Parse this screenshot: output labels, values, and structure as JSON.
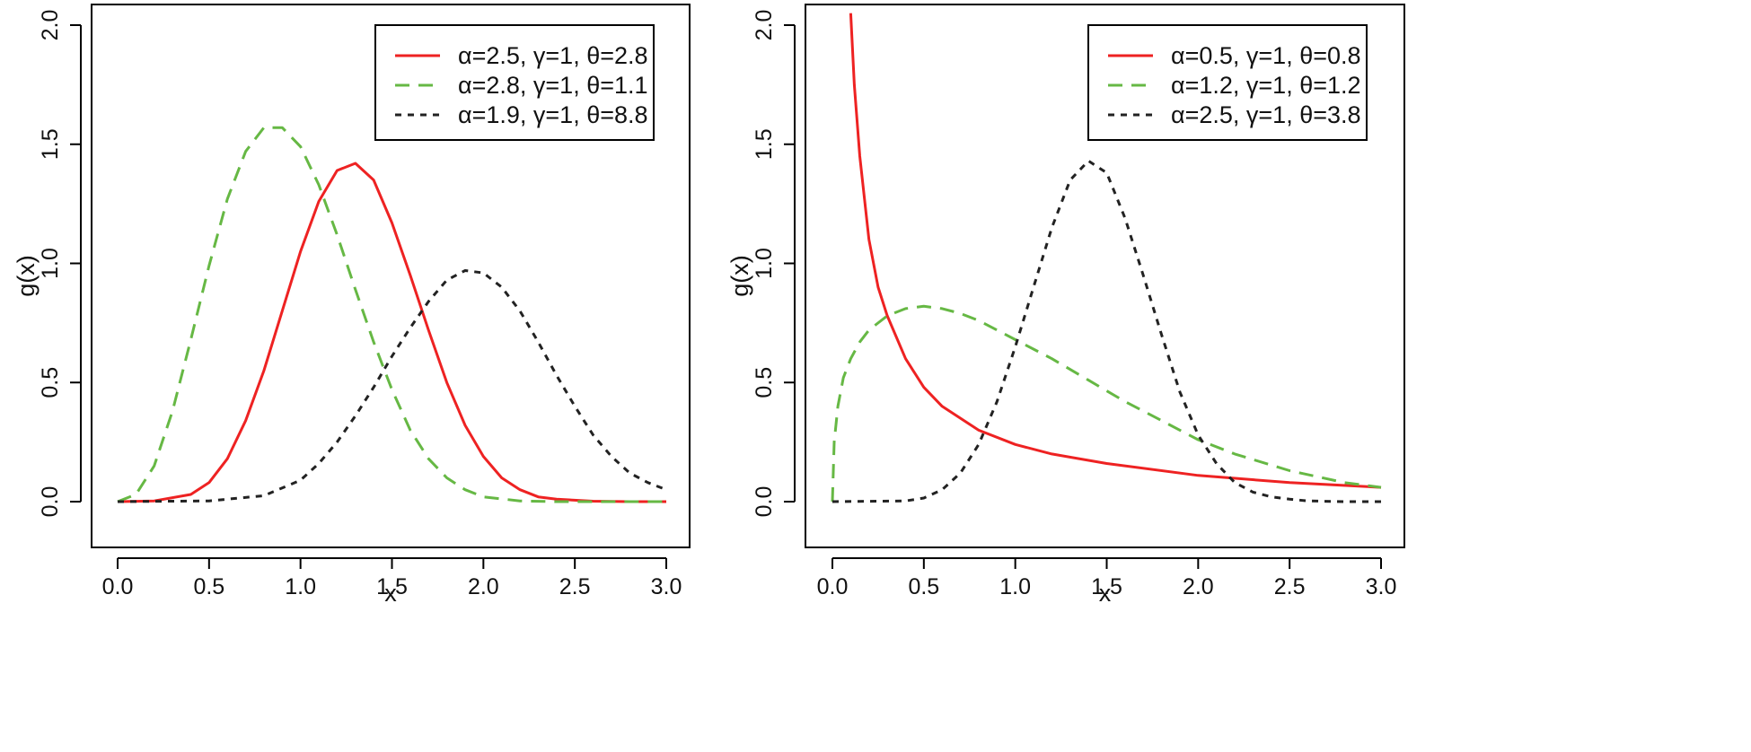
{
  "colors": {
    "red": "#ee2222",
    "green": "#66b844",
    "black": "#222222"
  },
  "chart_data": [
    {
      "type": "line",
      "title": "",
      "xlabel": "x",
      "ylabel": "g(x)",
      "xlim": [
        0,
        3
      ],
      "ylim": [
        0,
        2
      ],
      "xticks": [
        "0.0",
        "0.5",
        "1.0",
        "1.5",
        "2.0",
        "2.5",
        "3.0"
      ],
      "yticks": [
        "0.0",
        "0.5",
        "1.0",
        "1.5",
        "2.0"
      ],
      "legend_position": "top-right",
      "series": [
        {
          "name": "α=2.5, γ=1, θ=2.8",
          "color": "red",
          "dash": "solid",
          "x": [
            0,
            0.2,
            0.4,
            0.5,
            0.6,
            0.7,
            0.8,
            0.9,
            1.0,
            1.1,
            1.2,
            1.3,
            1.4,
            1.5,
            1.6,
            1.7,
            1.8,
            1.9,
            2.0,
            2.1,
            2.2,
            2.3,
            2.4,
            2.6,
            2.8,
            3.0
          ],
          "values": [
            0,
            0.003,
            0.03,
            0.08,
            0.18,
            0.34,
            0.55,
            0.8,
            1.05,
            1.26,
            1.39,
            1.42,
            1.35,
            1.17,
            0.95,
            0.72,
            0.5,
            0.32,
            0.19,
            0.1,
            0.05,
            0.02,
            0.01,
            0.002,
            0,
            0
          ]
        },
        {
          "name": "α=2.8, γ=1, θ=1.1",
          "color": "green",
          "dash": "dashed",
          "x": [
            0,
            0.1,
            0.2,
            0.3,
            0.4,
            0.5,
            0.6,
            0.7,
            0.8,
            0.9,
            1.0,
            1.1,
            1.2,
            1.3,
            1.4,
            1.5,
            1.6,
            1.7,
            1.8,
            1.9,
            2.0,
            2.2,
            2.4,
            2.6,
            2.8,
            3.0
          ],
          "values": [
            0,
            0.03,
            0.15,
            0.38,
            0.68,
            0.99,
            1.27,
            1.47,
            1.57,
            1.57,
            1.49,
            1.33,
            1.12,
            0.89,
            0.67,
            0.47,
            0.3,
            0.18,
            0.1,
            0.05,
            0.02,
            0.003,
            0,
            0,
            0,
            0
          ]
        },
        {
          "name": "α=1.9, γ=1, θ=8.8",
          "color": "black",
          "dash": "dotted",
          "x": [
            0,
            0.5,
            0.8,
            1.0,
            1.1,
            1.2,
            1.3,
            1.4,
            1.5,
            1.6,
            1.7,
            1.8,
            1.9,
            2.0,
            2.1,
            2.2,
            2.3,
            2.4,
            2.5,
            2.6,
            2.7,
            2.8,
            2.9,
            3.0
          ],
          "values": [
            0,
            0.003,
            0.025,
            0.09,
            0.16,
            0.25,
            0.36,
            0.48,
            0.61,
            0.73,
            0.84,
            0.93,
            0.97,
            0.96,
            0.9,
            0.8,
            0.67,
            0.53,
            0.4,
            0.28,
            0.19,
            0.12,
            0.08,
            0.05
          ]
        }
      ]
    },
    {
      "type": "line",
      "title": "",
      "xlabel": "x",
      "ylabel": "g(x)",
      "xlim": [
        0,
        3
      ],
      "ylim": [
        0,
        2
      ],
      "xticks": [
        "0.0",
        "0.5",
        "1.0",
        "1.5",
        "2.0",
        "2.5",
        "3.0"
      ],
      "yticks": [
        "0.0",
        "0.5",
        "1.0",
        "1.5",
        "2.0"
      ],
      "legend_position": "top-right",
      "series": [
        {
          "name": "α=0.5, γ=1, θ=0.8",
          "color": "red",
          "dash": "solid",
          "x": [
            0.1,
            0.12,
            0.15,
            0.2,
            0.25,
            0.3,
            0.4,
            0.5,
            0.6,
            0.8,
            1.0,
            1.2,
            1.5,
            2.0,
            2.5,
            3.0
          ],
          "values": [
            2.05,
            1.75,
            1.45,
            1.1,
            0.9,
            0.78,
            0.6,
            0.48,
            0.4,
            0.3,
            0.24,
            0.2,
            0.16,
            0.11,
            0.08,
            0.06
          ]
        },
        {
          "name": "α=1.2, γ=1, θ=1.2",
          "color": "green",
          "dash": "dashed",
          "x": [
            0,
            0.01,
            0.03,
            0.06,
            0.1,
            0.15,
            0.2,
            0.3,
            0.4,
            0.5,
            0.6,
            0.7,
            0.8,
            1.0,
            1.2,
            1.4,
            1.6,
            1.8,
            2.0,
            2.2,
            2.5,
            2.8,
            3.0
          ],
          "values": [
            0,
            0.25,
            0.4,
            0.52,
            0.6,
            0.67,
            0.72,
            0.78,
            0.81,
            0.82,
            0.81,
            0.79,
            0.76,
            0.68,
            0.6,
            0.51,
            0.42,
            0.34,
            0.26,
            0.2,
            0.13,
            0.08,
            0.06
          ]
        },
        {
          "name": "α=2.5, γ=1, θ=3.8",
          "color": "black",
          "dash": "dotted",
          "x": [
            0,
            0.4,
            0.5,
            0.6,
            0.7,
            0.8,
            0.9,
            1.0,
            1.1,
            1.2,
            1.3,
            1.4,
            1.5,
            1.6,
            1.7,
            1.8,
            1.9,
            2.0,
            2.1,
            2.2,
            2.3,
            2.4,
            2.5,
            2.6,
            2.8,
            3.0
          ],
          "values": [
            0,
            0.003,
            0.015,
            0.05,
            0.12,
            0.24,
            0.42,
            0.65,
            0.9,
            1.15,
            1.35,
            1.43,
            1.38,
            1.19,
            0.95,
            0.7,
            0.46,
            0.28,
            0.16,
            0.08,
            0.04,
            0.02,
            0.01,
            0.003,
            0,
            0
          ]
        }
      ]
    }
  ]
}
